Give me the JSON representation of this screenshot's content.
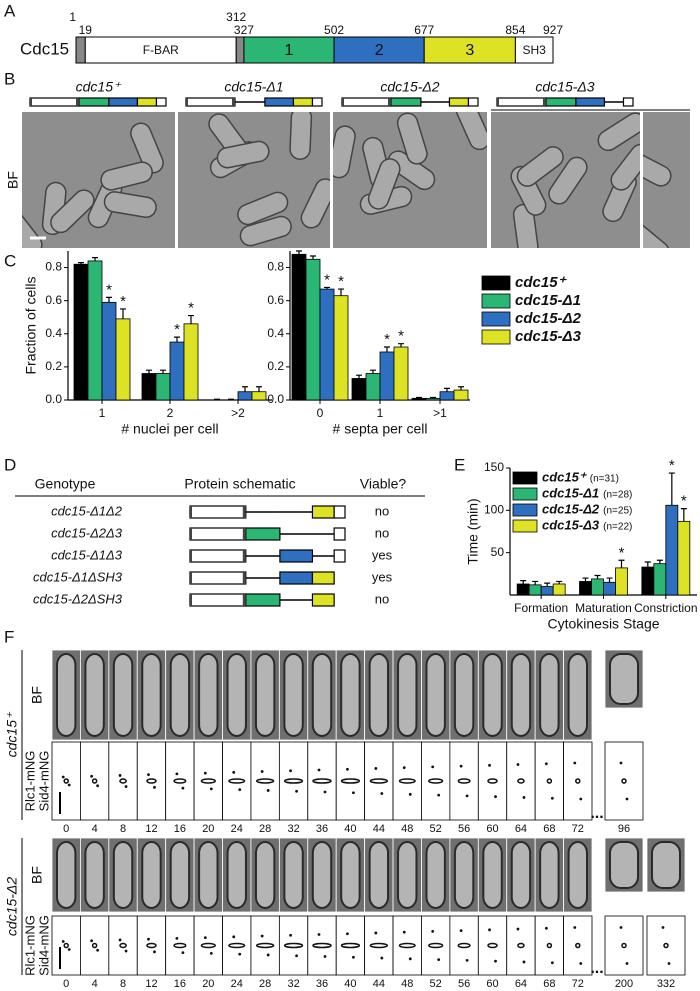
{
  "panel_labels": [
    "A",
    "B",
    "C",
    "D",
    "E",
    "F"
  ],
  "domain_map": {
    "protein": "Cdc15",
    "positions": [
      1,
      19,
      312,
      327,
      502,
      677,
      854,
      927
    ],
    "domains": [
      "F-BAR",
      "1",
      "2",
      "3",
      "SH3"
    ]
  },
  "brightfield": {
    "strains": [
      "cdc15⁺",
      "cdc15-Δ1",
      "cdc15-Δ2",
      "cdc15-Δ3"
    ],
    "channel": "BF"
  },
  "chart_data": [
    {
      "type": "bar",
      "ylabel": "Fraction of cells",
      "xlabel": "# nuclei per cell",
      "categories": [
        "1",
        "2",
        ">2"
      ],
      "ylim": [
        0,
        0.9
      ],
      "yticks": [
        {
          "value": 0,
          "label": "0.0"
        },
        0.2,
        0.4,
        0.6,
        0.8
      ],
      "series": [
        {
          "color": "#000000",
          "values": [
            0.82,
            0.16,
            0.0
          ],
          "errors": [
            0.01,
            0.02,
            0.005
          ],
          "significance": [
            null,
            null,
            null
          ]
        },
        {
          "color": "#2bb673",
          "values": [
            0.84,
            0.16,
            0.0
          ],
          "errors": [
            0.02,
            0.02,
            0.005
          ],
          "significance": [
            null,
            null,
            null
          ]
        },
        {
          "color": "#2f6fbf",
          "values": [
            0.59,
            0.35,
            0.05
          ],
          "errors": [
            0.03,
            0.03,
            0.03
          ],
          "significance": [
            "*",
            "*",
            null
          ]
        },
        {
          "color": "#dde324",
          "values": [
            0.49,
            0.46,
            0.05
          ],
          "errors": [
            0.06,
            0.05,
            0.03
          ],
          "significance": [
            "*",
            "*",
            null
          ]
        }
      ]
    },
    {
      "type": "bar",
      "xlabel": "# septa per cell",
      "categories": [
        "0",
        "1",
        ">1"
      ],
      "ylim": [
        0,
        0.9
      ],
      "yticks": [
        {
          "value": 0,
          "label": "0.0"
        },
        0.2,
        0.4,
        0.6,
        0.8
      ],
      "legend": "right",
      "series": [
        {
          "name": "cdc15⁺",
          "color": "#000000",
          "values": [
            0.88,
            0.13,
            0.01
          ],
          "errors": [
            0.02,
            0.02,
            0.005
          ],
          "significance": [
            null,
            null,
            null
          ]
        },
        {
          "name": "cdc15-Δ1",
          "color": "#2bb673",
          "values": [
            0.85,
            0.16,
            0.01
          ],
          "errors": [
            0.02,
            0.02,
            0.005
          ],
          "significance": [
            null,
            null,
            null
          ]
        },
        {
          "name": "cdc15-Δ2",
          "color": "#2f6fbf",
          "values": [
            0.67,
            0.29,
            0.05
          ],
          "errors": [
            0.01,
            0.03,
            0.02
          ],
          "significance": [
            "*",
            "*",
            null
          ]
        },
        {
          "name": "cdc15-Δ3",
          "color": "#dde324",
          "values": [
            0.63,
            0.32,
            0.06
          ],
          "errors": [
            0.04,
            0.02,
            0.02
          ],
          "significance": [
            "*",
            "*",
            null
          ]
        }
      ]
    },
    {
      "type": "bar",
      "ylabel": "Time (min)",
      "xlabel": "Cytokinesis Stage",
      "categories": [
        "Formation",
        "Maturation",
        "Constriction"
      ],
      "ylim": [
        0,
        150
      ],
      "yticks": [
        50,
        100,
        150
      ],
      "legend": "upper left",
      "series": [
        {
          "name": "cdc15⁺",
          "n": "(n=31)",
          "color": "#000000",
          "values": [
            13,
            16,
            33
          ],
          "errors": [
            4,
            4,
            6
          ],
          "significance": [
            null,
            null,
            null
          ]
        },
        {
          "name": "cdc15-Δ1",
          "n": "(n=28)",
          "color": "#2bb673",
          "values": [
            12,
            19,
            37
          ],
          "errors": [
            4,
            4,
            4
          ],
          "significance": [
            null,
            null,
            null
          ]
        },
        {
          "name": "cdc15-Δ2",
          "n": "(n=25)",
          "color": "#2f6fbf",
          "values": [
            10,
            15,
            106
          ],
          "errors": [
            4,
            5,
            38
          ],
          "significance": [
            null,
            null,
            "*"
          ]
        },
        {
          "name": "cdc15-Δ3",
          "n": "(n=22)",
          "color": "#dde324",
          "values": [
            13,
            32,
            87
          ],
          "errors": [
            3,
            9,
            15
          ],
          "significance": [
            null,
            "*",
            "*"
          ]
        }
      ]
    }
  ],
  "genotype_table": {
    "headers": [
      "Genotype",
      "Protein schematic",
      "Viable?"
    ],
    "rows": [
      [
        "cdc15-Δ1Δ2",
        "no"
      ],
      [
        "cdc15-Δ2Δ3",
        "no"
      ],
      [
        "cdc15-Δ1Δ3",
        "yes"
      ],
      [
        "cdc15-Δ1ΔSH3",
        "yes"
      ],
      [
        "cdc15-Δ2ΔSH3",
        "no"
      ]
    ]
  },
  "timelapse": [
    {
      "strain": "cdc15⁺",
      "channels": [
        "BF",
        "Rlc1-mNG",
        "Sid4-mNG"
      ],
      "times": [
        0,
        4,
        8,
        12,
        16,
        20,
        24,
        28,
        32,
        36,
        40,
        44,
        48,
        52,
        56,
        60,
        64,
        68,
        72
      ],
      "ellipsis": "...",
      "extra_times": [
        96
      ]
    },
    {
      "strain": "cdc15-Δ2",
      "channels": [
        "BF",
        "Rlc1-mNG",
        "Sid4-mNG"
      ],
      "times": [
        0,
        4,
        8,
        12,
        16,
        20,
        24,
        28,
        32,
        36,
        40,
        44,
        48,
        52,
        56,
        60,
        64,
        68,
        72
      ],
      "ellipsis": "...",
      "extra_times": [
        200,
        332
      ]
    }
  ]
}
